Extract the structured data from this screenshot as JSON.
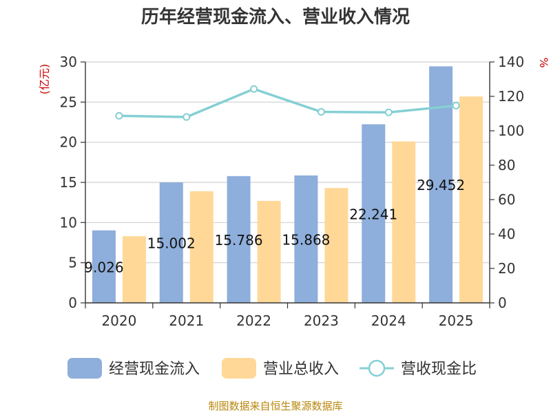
{
  "chart_data": {
    "type": "bar",
    "title": "历年经营现金流入、营业收入情况",
    "categories": [
      "2020",
      "2021",
      "2022",
      "2023",
      "2024",
      "2025"
    ],
    "series": [
      {
        "name": "经营现金流入",
        "type": "bar",
        "axis": "left",
        "color": "#8eaedb",
        "values": [
          9.026,
          15.002,
          15.786,
          15.868,
          22.241,
          29.452
        ]
      },
      {
        "name": "营业总收入",
        "type": "bar",
        "axis": "left",
        "color": "#ffd898",
        "values": [
          8.3,
          13.9,
          12.7,
          14.3,
          20.1,
          25.7
        ]
      },
      {
        "name": "营收现金比",
        "type": "line",
        "axis": "right",
        "color": "#85cfd4",
        "values": [
          108.7,
          108.0,
          124.3,
          111.0,
          110.7,
          114.6
        ]
      }
    ],
    "data_labels": [
      "9.026",
      "15.002",
      "15.786",
      "15.868",
      "22.241",
      "29.452"
    ],
    "y_left": {
      "unit": "(亿元)",
      "ylim": [
        0,
        30
      ],
      "ticks": [
        0,
        5,
        10,
        15,
        20,
        25,
        30
      ]
    },
    "y_right": {
      "unit": "%",
      "ylim": [
        0,
        140
      ],
      "ticks": [
        0,
        20,
        40,
        60,
        80,
        100,
        120,
        140
      ]
    },
    "grid": true,
    "legend_position": "bottom"
  },
  "legend": [
    "经营现金流入",
    "营业总收入",
    "营收现金比"
  ],
  "source": "制图数据来自恒生聚源数据库"
}
